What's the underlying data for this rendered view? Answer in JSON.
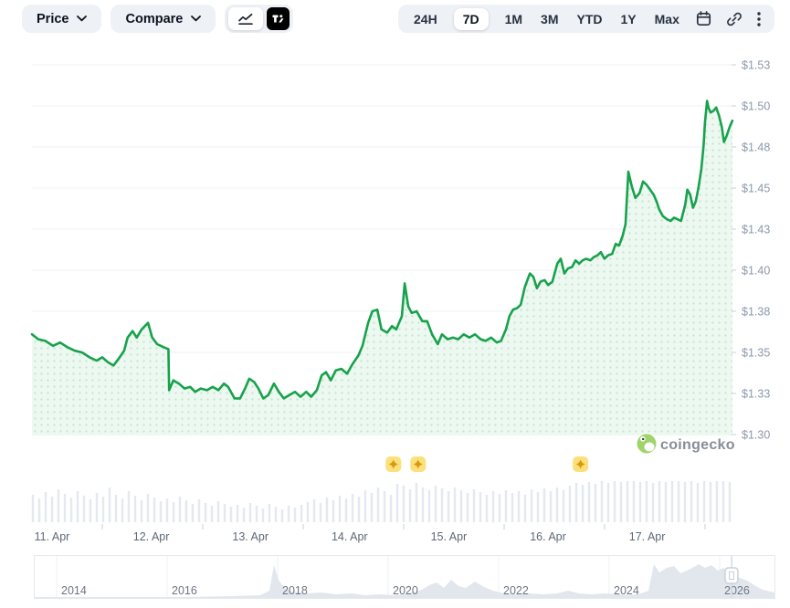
{
  "toolbar": {
    "price_label": "Price",
    "compare_label": "Compare",
    "chart_type": {
      "options": [
        "line-chart",
        "tradingview"
      ],
      "selected": "line-chart"
    },
    "time_ranges": [
      "24H",
      "7D",
      "1M",
      "3M",
      "YTD",
      "1Y",
      "Max"
    ],
    "active_range": "7D"
  },
  "watermark": {
    "text": "coingecko"
  },
  "colors": {
    "line_green": "#17a24b",
    "area_bg": "#edf8f1",
    "area_dot": "#c3e6cf",
    "volume_bar": "#e3e9f2",
    "grid": "#eef0f3",
    "y_axis_text": "#8b99ab",
    "x_axis_text": "#5d6876",
    "year_text": "#6d7682",
    "tick": "#c9d1da",
    "badge_bg": "#fbe07c",
    "badge_star": "#d79a0e",
    "overview_area": "#e2e7ee",
    "overview_border": "#e6e9ed",
    "handle_stroke": "#c9d0d9"
  },
  "chart_data": {
    "type": "line",
    "title": "",
    "currency": "USD",
    "y_axis": {
      "labels": [
        "$1.53",
        "$1.50",
        "$1.48",
        "$1.45",
        "$1.43",
        "$1.40",
        "$1.38",
        "$1.35",
        "$1.33",
        "$1.30"
      ],
      "min": 1.3,
      "max": 1.525,
      "grid": true
    },
    "x_axis": {
      "labels": [
        "11. Apr",
        "12. Apr",
        "13. Apr",
        "14. Apr",
        "15. Apr",
        "16. Apr",
        "17. Apr"
      ]
    },
    "series": [
      {
        "name": "Price (USD)",
        "points": [
          [
            0.0,
            1.361
          ],
          [
            0.009,
            1.358
          ],
          [
            0.019,
            1.357
          ],
          [
            0.03,
            1.354
          ],
          [
            0.04,
            1.356
          ],
          [
            0.051,
            1.353
          ],
          [
            0.061,
            1.351
          ],
          [
            0.071,
            1.35
          ],
          [
            0.082,
            1.347
          ],
          [
            0.092,
            1.345
          ],
          [
            0.1,
            1.347
          ],
          [
            0.108,
            1.344
          ],
          [
            0.116,
            1.342
          ],
          [
            0.123,
            1.346
          ],
          [
            0.131,
            1.351
          ],
          [
            0.136,
            1.359
          ],
          [
            0.143,
            1.363
          ],
          [
            0.149,
            1.359
          ],
          [
            0.156,
            1.364
          ],
          [
            0.165,
            1.368
          ],
          [
            0.171,
            1.359
          ],
          [
            0.178,
            1.355
          ],
          [
            0.188,
            1.353
          ],
          [
            0.194,
            1.352
          ],
          [
            0.195,
            1.327
          ],
          [
            0.201,
            1.333
          ],
          [
            0.209,
            1.331
          ],
          [
            0.217,
            1.328
          ],
          [
            0.225,
            1.329
          ],
          [
            0.232,
            1.326
          ],
          [
            0.24,
            1.328
          ],
          [
            0.249,
            1.327
          ],
          [
            0.257,
            1.329
          ],
          [
            0.265,
            1.327
          ],
          [
            0.273,
            1.331
          ],
          [
            0.279,
            1.329
          ],
          [
            0.288,
            1.322
          ],
          [
            0.296,
            1.322
          ],
          [
            0.303,
            1.328
          ],
          [
            0.309,
            1.334
          ],
          [
            0.316,
            1.332
          ],
          [
            0.322,
            1.328
          ],
          [
            0.329,
            1.322
          ],
          [
            0.336,
            1.324
          ],
          [
            0.344,
            1.331
          ],
          [
            0.351,
            1.326
          ],
          [
            0.358,
            1.322
          ],
          [
            0.366,
            1.324
          ],
          [
            0.374,
            1.326
          ],
          [
            0.382,
            1.323
          ],
          [
            0.39,
            1.326
          ],
          [
            0.397,
            1.323
          ],
          [
            0.405,
            1.327
          ],
          [
            0.412,
            1.336
          ],
          [
            0.418,
            1.338
          ],
          [
            0.425,
            1.333
          ],
          [
            0.432,
            1.339
          ],
          [
            0.44,
            1.34
          ],
          [
            0.448,
            1.337
          ],
          [
            0.456,
            1.343
          ],
          [
            0.464,
            1.348
          ],
          [
            0.47,
            1.354
          ],
          [
            0.478,
            1.368
          ],
          [
            0.484,
            1.375
          ],
          [
            0.491,
            1.376
          ],
          [
            0.497,
            1.364
          ],
          [
            0.505,
            1.362
          ],
          [
            0.512,
            1.366
          ],
          [
            0.518,
            1.364
          ],
          [
            0.526,
            1.372
          ],
          [
            0.53,
            1.392
          ],
          [
            0.535,
            1.378
          ],
          [
            0.54,
            1.374
          ],
          [
            0.547,
            1.375
          ],
          [
            0.555,
            1.369
          ],
          [
            0.562,
            1.369
          ],
          [
            0.569,
            1.361
          ],
          [
            0.577,
            1.355
          ],
          [
            0.583,
            1.361
          ],
          [
            0.591,
            1.358
          ],
          [
            0.599,
            1.359
          ],
          [
            0.606,
            1.358
          ],
          [
            0.614,
            1.361
          ],
          [
            0.622,
            1.359
          ],
          [
            0.63,
            1.361
          ],
          [
            0.638,
            1.358
          ],
          [
            0.645,
            1.357
          ],
          [
            0.653,
            1.359
          ],
          [
            0.661,
            1.356
          ],
          [
            0.667,
            1.357
          ],
          [
            0.674,
            1.364
          ],
          [
            0.679,
            1.372
          ],
          [
            0.684,
            1.376
          ],
          [
            0.69,
            1.377
          ],
          [
            0.695,
            1.379
          ],
          [
            0.701,
            1.39
          ],
          [
            0.708,
            1.398
          ],
          [
            0.713,
            1.396
          ],
          [
            0.718,
            1.389
          ],
          [
            0.723,
            1.393
          ],
          [
            0.729,
            1.394
          ],
          [
            0.734,
            1.391
          ],
          [
            0.74,
            1.393
          ],
          [
            0.747,
            1.404
          ],
          [
            0.752,
            1.407
          ],
          [
            0.757,
            1.398
          ],
          [
            0.762,
            1.401
          ],
          [
            0.768,
            1.402
          ],
          [
            0.773,
            1.406
          ],
          [
            0.778,
            1.404
          ],
          [
            0.783,
            1.406
          ],
          [
            0.788,
            1.407
          ],
          [
            0.794,
            1.406
          ],
          [
            0.799,
            1.408
          ],
          [
            0.804,
            1.409
          ],
          [
            0.809,
            1.411
          ],
          [
            0.814,
            1.407
          ],
          [
            0.819,
            1.409
          ],
          [
            0.825,
            1.41
          ],
          [
            0.83,
            1.416
          ],
          [
            0.835,
            1.415
          ],
          [
            0.84,
            1.421
          ],
          [
            0.844,
            1.428
          ],
          [
            0.848,
            1.46
          ],
          [
            0.853,
            1.451
          ],
          [
            0.858,
            1.444
          ],
          [
            0.864,
            1.447
          ],
          [
            0.869,
            1.454
          ],
          [
            0.874,
            1.452
          ],
          [
            0.879,
            1.449
          ],
          [
            0.884,
            1.446
          ],
          [
            0.888,
            1.442
          ],
          [
            0.892,
            1.437
          ],
          [
            0.897,
            1.433
          ],
          [
            0.903,
            1.431
          ],
          [
            0.908,
            1.43
          ],
          [
            0.913,
            1.432
          ],
          [
            0.918,
            1.431
          ],
          [
            0.923,
            1.43
          ],
          [
            0.929,
            1.44
          ],
          [
            0.932,
            1.449
          ],
          [
            0.936,
            1.446
          ],
          [
            0.94,
            1.438
          ],
          [
            0.944,
            1.442
          ],
          [
            0.948,
            1.451
          ],
          [
            0.952,
            1.462
          ],
          [
            0.955,
            1.476
          ],
          [
            0.957,
            1.49
          ],
          [
            0.96,
            1.503
          ],
          [
            0.962,
            1.499
          ],
          [
            0.965,
            1.496
          ],
          [
            0.969,
            1.497
          ],
          [
            0.973,
            1.499
          ],
          [
            0.977,
            1.494
          ],
          [
            0.981,
            1.487
          ],
          [
            0.984,
            1.478
          ],
          [
            0.988,
            1.482
          ],
          [
            0.992,
            1.487
          ],
          [
            0.996,
            1.491
          ]
        ]
      }
    ],
    "volume": {
      "heights": [
        30,
        26,
        33,
        28,
        36,
        31,
        27,
        34,
        29,
        25,
        32,
        28,
        38,
        30,
        26,
        34,
        29,
        24,
        31,
        27,
        23,
        26,
        22,
        28,
        24,
        20,
        25,
        21,
        18,
        23,
        20,
        17,
        19,
        16,
        21,
        18,
        15,
        20,
        17,
        14,
        18,
        16,
        19,
        22,
        25,
        21,
        27,
        24,
        29,
        26,
        31,
        28,
        35,
        32,
        38,
        34,
        30,
        42,
        40,
        36,
        43,
        38,
        35,
        40,
        37,
        34,
        38,
        35,
        32,
        36,
        33,
        30,
        34,
        31,
        35,
        32,
        34,
        30,
        36,
        33,
        37,
        34,
        38,
        35,
        40,
        43,
        41,
        44,
        42,
        45,
        43,
        45,
        44,
        45,
        45,
        44,
        45,
        43,
        45,
        44,
        45,
        45,
        44,
        45,
        43,
        45,
        44,
        45,
        45,
        44
      ]
    },
    "event_markers": {
      "positions_t": [
        0.514,
        0.549,
        0.78
      ]
    },
    "overview": {
      "years": [
        "2014",
        "2016",
        "2018",
        "2020",
        "2022",
        "2024",
        "2026"
      ],
      "area_points": [
        [
          0,
          1
        ],
        [
          53,
          1
        ],
        [
          103,
          1
        ],
        [
          163,
          1
        ],
        [
          218,
          2
        ],
        [
          248,
          3
        ],
        [
          258,
          8
        ],
        [
          263,
          36
        ],
        [
          268,
          20
        ],
        [
          274,
          11
        ],
        [
          283,
          7
        ],
        [
          298,
          5
        ],
        [
          315,
          6
        ],
        [
          331,
          4
        ],
        [
          348,
          5
        ],
        [
          363,
          3
        ],
        [
          378,
          4
        ],
        [
          395,
          3
        ],
        [
          411,
          5
        ],
        [
          423,
          8
        ],
        [
          433,
          14
        ],
        [
          441,
          17
        ],
        [
          449,
          11
        ],
        [
          457,
          20
        ],
        [
          465,
          13
        ],
        [
          473,
          11
        ],
        [
          483,
          18
        ],
        [
          493,
          12
        ],
        [
          503,
          8
        ],
        [
          515,
          5
        ],
        [
          528,
          4
        ],
        [
          543,
          5
        ],
        [
          558,
          4
        ],
        [
          573,
          5
        ],
        [
          585,
          8
        ],
        [
          597,
          5
        ],
        [
          611,
          4
        ],
        [
          625,
          5
        ],
        [
          639,
          4
        ],
        [
          653,
          3
        ],
        [
          665,
          5
        ],
        [
          673,
          8
        ],
        [
          679,
          37
        ],
        [
          685,
          28
        ],
        [
          693,
          33
        ],
        [
          701,
          35
        ],
        [
          708,
          27
        ],
        [
          715,
          30
        ],
        [
          721,
          33
        ],
        [
          728,
          37
        ],
        [
          735,
          33
        ],
        [
          742,
          36
        ],
        [
          749,
          30
        ],
        [
          755,
          33
        ],
        [
          761,
          28
        ],
        [
          767,
          25
        ],
        [
          773,
          22
        ],
        [
          781,
          19
        ],
        [
          789,
          14
        ],
        [
          798,
          9
        ],
        [
          811,
          6
        ]
      ]
    }
  }
}
